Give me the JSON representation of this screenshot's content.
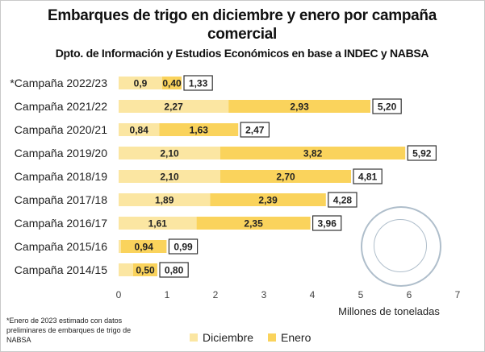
{
  "title": "Embarques de trigo en diciembre y enero por campaña comercial",
  "subtitle": "Dpto. de Información y Estudios Económicos en base a INDEC y NABSA",
  "footnote": "*Enero de 2023 estimado con datos preliminares de embarques de trigo de NABSA",
  "colors": {
    "diciembre": "#fbe6a2",
    "enero": "#fad35c",
    "total_border": "#333333"
  },
  "logo": "bolsa-de-comercio-de-rosario-seal",
  "chart_data": {
    "type": "bar",
    "orientation": "horizontal",
    "stacked": true,
    "title": "Embarques de trigo en diciembre y enero por campaña comercial",
    "subtitle": "Dpto. de Información y Estudios Económicos en base a INDEC y NABSA",
    "xlabel": "Millones de toneladas",
    "ylabel": "",
    "xlim": [
      0,
      7
    ],
    "xticks": [
      0,
      1,
      2,
      3,
      4,
      5,
      6,
      7
    ],
    "grid": false,
    "legend_position": "bottom",
    "categories": [
      "*Campaña 2022/23",
      "Campaña 2021/22",
      "Campaña 2020/21",
      "Campaña 2019/20",
      "Campaña 2018/19",
      "Campaña 2017/18",
      "Campaña 2016/17",
      "Campaña 2015/16",
      "Campaña 2014/15"
    ],
    "series": [
      {
        "name": "Diciembre",
        "values": [
          0.9,
          2.27,
          0.84,
          2.1,
          2.1,
          1.89,
          1.61,
          0.05,
          0.3
        ],
        "labels": [
          "0,9",
          "2,27",
          "0,84",
          "2,10",
          "2,10",
          "1,89",
          "1,61",
          "",
          ""
        ]
      },
      {
        "name": "Enero",
        "values": [
          0.4,
          2.93,
          1.63,
          3.82,
          2.7,
          2.39,
          2.35,
          0.94,
          0.5
        ],
        "labels": [
          "0,40",
          "2,93",
          "1,63",
          "3,82",
          "2,70",
          "2,39",
          "2,35",
          "0,94",
          "0,50"
        ]
      }
    ],
    "totals": [
      1.33,
      5.2,
      2.47,
      5.92,
      4.81,
      4.28,
      3.96,
      0.99,
      0.8
    ],
    "total_labels": [
      "1,33",
      "5,20",
      "2,47",
      "5,92",
      "4,81",
      "4,28",
      "3,96",
      "0,99",
      "0,80"
    ]
  }
}
